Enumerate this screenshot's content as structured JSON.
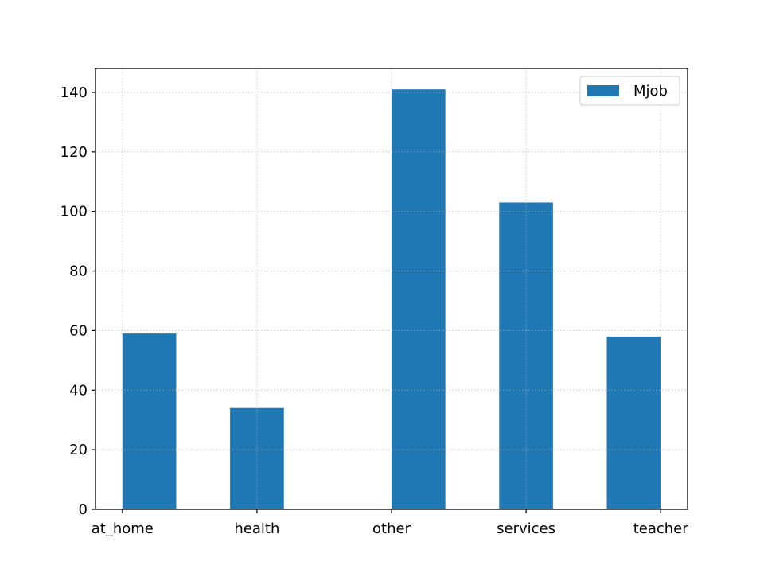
{
  "chart_data": {
    "type": "bar",
    "title": "",
    "xlabel": "",
    "ylabel": "",
    "categories": [
      "at_home",
      "health",
      "other",
      "services",
      "teacher"
    ],
    "series": [
      {
        "name": "Mjob",
        "bins": [
          {
            "x0": 0.0,
            "x1": 0.4,
            "count": 59
          },
          {
            "x0": 0.8,
            "x1": 1.2,
            "count": 34
          },
          {
            "x0": 2.0,
            "x1": 2.4,
            "count": 141
          },
          {
            "x0": 2.8,
            "x1": 3.2,
            "count": 103
          },
          {
            "x0": 3.6,
            "x1": 4.0,
            "count": 58
          }
        ]
      }
    ],
    "xlim": [
      -0.2,
      4.2
    ],
    "ylim": [
      0,
      148
    ],
    "yticks": [
      0,
      20,
      40,
      60,
      80,
      100,
      120,
      140
    ],
    "xticks": [
      0,
      1,
      2,
      3,
      4
    ],
    "grid": true,
    "legend": "top-right",
    "colors": {
      "bar": "#1f77b4",
      "grid": "#b0b0b0",
      "axis": "#000000"
    }
  }
}
